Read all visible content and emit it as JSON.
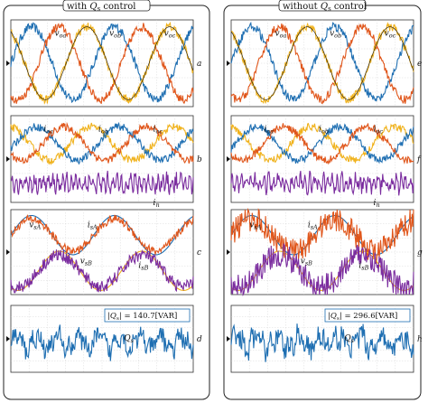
{
  "chart_data": {
    "type": "line",
    "grid": true,
    "columns": [
      {
        "title": "with Q_s control",
        "title_parts": [
          "with ",
          "Q",
          "s",
          " control"
        ],
        "panels": [
          {
            "letter": "a",
            "labels": [
              [
                "v",
                "oa"
              ],
              [
                "v",
                "ob"
              ],
              [
                "v",
                "oc"
              ]
            ],
            "series": [
              {
                "color": "#1f6fb2",
                "amplitude": 1.0,
                "phase_deg": 0,
                "noise": 0.12
              },
              {
                "color": "#e0561b",
                "amplitude": 1.0,
                "phase_deg": -120,
                "noise": 0.12
              },
              {
                "color": "#f0b21c",
                "amplitude": 1.0,
                "phase_deg": 120,
                "noise": 0.12
              },
              {
                "color": "#111111",
                "amplitude": 1.0,
                "phase_deg": 120,
                "noise": 0.0
              }
            ]
          },
          {
            "letter": "b",
            "labels": [
              [
                "i",
                "oa"
              ],
              [
                "i",
                "ob"
              ],
              [
                "i",
                "oc"
              ],
              [
                "i",
                "n"
              ]
            ],
            "series": [
              {
                "color": "#f0b21c",
                "amplitude": 0.35,
                "phase_deg": 100,
                "noise": 0.08
              },
              {
                "color": "#1f6fb2",
                "amplitude": 0.35,
                "phase_deg": -20,
                "noise": 0.08
              },
              {
                "color": "#e0561b",
                "amplitude": 0.35,
                "phase_deg": -140,
                "noise": 0.08
              },
              {
                "color": "#7b2d9f",
                "amplitude": 0.12,
                "phase_deg": 0,
                "noise": 0.15
              }
            ]
          },
          {
            "letter": "c",
            "labels": [
              [
                "v",
                "sA"
              ],
              [
                "i",
                "sA"
              ],
              [
                "v",
                "sB"
              ],
              [
                "i",
                "sB"
              ]
            ],
            "series": [
              {
                "color": "#1f6fb2",
                "amplitude": 0.55,
                "phase_deg": 0,
                "noise": 0.0
              },
              {
                "color": "#e0561b",
                "amplitude": 0.45,
                "phase_deg": 0,
                "noise": 0.12
              },
              {
                "color": "#f0b21c",
                "amplitude": 0.55,
                "phase_deg": -120,
                "noise": 0.0
              },
              {
                "color": "#7b2d9f",
                "amplitude": 0.45,
                "phase_deg": -120,
                "noise": 0.18
              }
            ]
          },
          {
            "letter": "d",
            "labels": [
              [
                "Q",
                "s"
              ]
            ],
            "box": [
              "|",
              "Q",
              "s",
              "| = 140.7[VAR]"
            ],
            "series": [
              {
                "color": "#1f6fb2",
                "amplitude": 0.3,
                "phase_deg": 0,
                "noise": 0.25
              }
            ]
          }
        ]
      },
      {
        "title": "without Q_s control",
        "title_parts": [
          "without ",
          "Q",
          "s",
          " control"
        ],
        "panels": [
          {
            "letter": "e",
            "labels": [
              [
                "v",
                "oa"
              ],
              [
                "v",
                "ob"
              ],
              [
                "v",
                "oc"
              ]
            ],
            "series": [
              {
                "color": "#1f6fb2",
                "amplitude": 1.0,
                "phase_deg": 0,
                "noise": 0.12
              },
              {
                "color": "#e0561b",
                "amplitude": 1.0,
                "phase_deg": -120,
                "noise": 0.12
              },
              {
                "color": "#f0b21c",
                "amplitude": 1.0,
                "phase_deg": 120,
                "noise": 0.12
              },
              {
                "color": "#111111",
                "amplitude": 1.0,
                "phase_deg": 120,
                "noise": 0.0
              }
            ]
          },
          {
            "letter": "f",
            "labels": [
              [
                "i",
                "oa"
              ],
              [
                "i",
                "ob"
              ],
              [
                "i",
                "oc"
              ],
              [
                "i",
                "n"
              ]
            ],
            "series": [
              {
                "color": "#f0b21c",
                "amplitude": 0.35,
                "phase_deg": 100,
                "noise": 0.08
              },
              {
                "color": "#1f6fb2",
                "amplitude": 0.35,
                "phase_deg": -20,
                "noise": 0.08
              },
              {
                "color": "#e0561b",
                "amplitude": 0.35,
                "phase_deg": -140,
                "noise": 0.08
              },
              {
                "color": "#7b2d9f",
                "amplitude": 0.12,
                "phase_deg": 0,
                "noise": 0.15
              }
            ]
          },
          {
            "letter": "g",
            "labels": [
              [
                "v",
                "sA"
              ],
              [
                "i",
                "sA"
              ],
              [
                "v",
                "sB"
              ],
              [
                "i",
                "sB"
              ]
            ],
            "series": [
              {
                "color": "#1f6fb2",
                "amplitude": 0.55,
                "phase_deg": 0,
                "noise": 0.0
              },
              {
                "color": "#e0561b",
                "amplitude": 0.45,
                "phase_deg": 0,
                "noise": 0.35
              },
              {
                "color": "#f0b21c",
                "amplitude": 0.55,
                "phase_deg": -120,
                "noise": 0.0
              },
              {
                "color": "#7b2d9f",
                "amplitude": 0.45,
                "phase_deg": -120,
                "noise": 0.35
              }
            ]
          },
          {
            "letter": "h",
            "labels": [
              [
                "Q",
                "s"
              ]
            ],
            "box": [
              "|",
              "Q",
              "s",
              "| = 296.6[VAR]"
            ],
            "series": [
              {
                "color": "#1f6fb2",
                "amplitude": 0.3,
                "phase_deg": 0,
                "noise": 0.3
              }
            ]
          }
        ]
      }
    ]
  }
}
